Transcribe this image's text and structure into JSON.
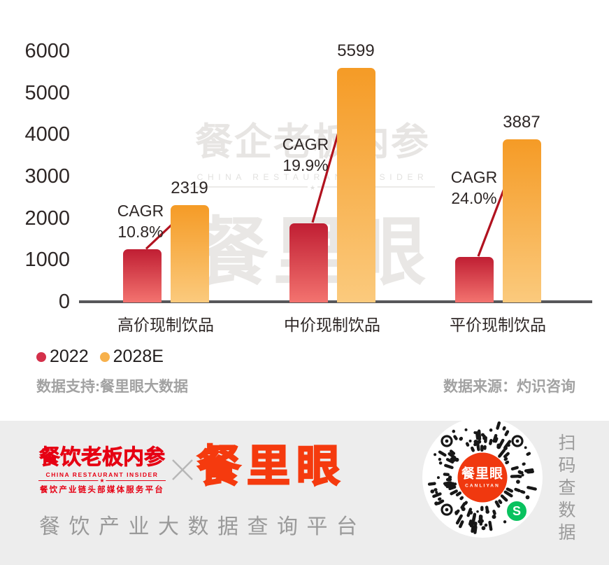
{
  "chart_data": {
    "type": "bar",
    "title": "",
    "categories": [
      "高价现制饮品",
      "中价现制饮品",
      "平价现制饮品"
    ],
    "series": [
      {
        "name": "2022",
        "color": "#d4304a",
        "gradient_top": "#c01e33",
        "gradient_bottom": "#f3736f",
        "values": [
          1250,
          1880,
          1070
        ]
      },
      {
        "name": "2028E",
        "color": "#f7b14c",
        "gradient_top": "#f59b26",
        "gradient_bottom": "#fbca7d",
        "values": [
          2319,
          5599,
          3887
        ]
      }
    ],
    "bar_value_labels": [
      "2319",
      "5599",
      "3887"
    ],
    "annotations": [
      {
        "label": "CAGR",
        "value": "10.8%"
      },
      {
        "label": "CAGR",
        "value": "19.9%"
      },
      {
        "label": "CAGR",
        "value": "24.0%"
      }
    ],
    "ylim": [
      0,
      6000
    ],
    "yticks": [
      0,
      1000,
      2000,
      3000,
      4000,
      5000,
      6000
    ],
    "grid": false,
    "legend_position": "bottom-left"
  },
  "watermark": {
    "line1": "餐企老板内参",
    "line2": "CHINA RESTAURANT INSIDER",
    "line3": "餐里眼",
    "star": "★"
  },
  "notes": {
    "left": "数据支持:餐里眼大数据",
    "right": "数据来源：灼识咨询"
  },
  "footer": {
    "logo_left": {
      "title": "餐饮老板内参",
      "subtitle_en": "CHINA RESTAURANT INSIDER",
      "subtitle_cn": "餐饮产业链头部媒体服务平台",
      "star": "★"
    },
    "brand": "餐里眼",
    "tagline": "餐饮产业大数据查询平台",
    "qr": {
      "center_title": "餐里眼",
      "center_subtitle": "CANLIYAN",
      "mini_program_glyph": "S",
      "scan_hint": "扫码查数据"
    }
  },
  "colors": {
    "arrow": "#b1121f",
    "axis": "#57575a",
    "text_dark": "#2e2726",
    "note_gray": "#a2a2a2",
    "footer_bg": "#ededed",
    "logo_red": "#e60013",
    "brand_orange": "#f53a0e",
    "qr_center_orange": "#f0380f",
    "wechat_green": "#09c25f",
    "qr_dots": "#171717"
  }
}
